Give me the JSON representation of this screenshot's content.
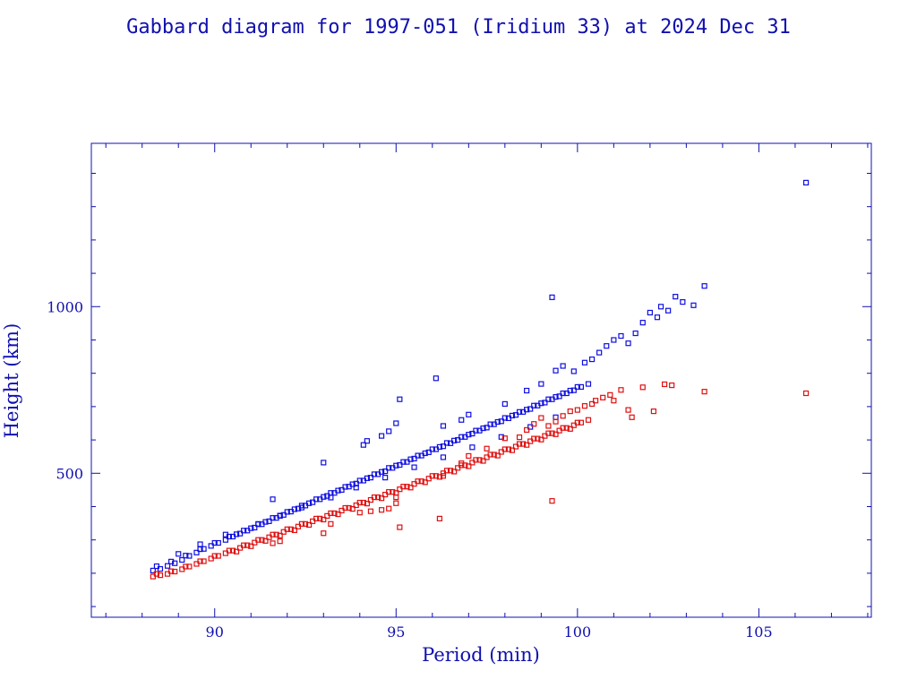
{
  "chart_data": {
    "type": "scatter",
    "title": "Gabbard diagram for 1997-051 (Iridium 33) at 2024 Dec 31",
    "xlabel": "Period (min)",
    "ylabel": "Height (km)",
    "xlim": [
      86.6,
      108.1
    ],
    "ylim": [
      68,
      1490
    ],
    "x_ticks": [
      90,
      95,
      100,
      105
    ],
    "x_tick_labels": [
      "90",
      "95",
      "100",
      "105"
    ],
    "y_ticks": [
      500,
      1000
    ],
    "y_tick_labels": [
      "500",
      "1000"
    ],
    "marker": "small open square",
    "grid": false,
    "legend": "none",
    "series": [
      {
        "role": "apogee",
        "color": "#1010e0",
        "points": [
          [
            88.3,
            208
          ],
          [
            88.5,
            213
          ],
          [
            88.7,
            222
          ],
          [
            88.9,
            230
          ],
          [
            89.1,
            240
          ],
          [
            89.3,
            252
          ],
          [
            89.5,
            262
          ],
          [
            89.7,
            273
          ],
          [
            89.9,
            282
          ],
          [
            90.1,
            291
          ],
          [
            90.3,
            300
          ],
          [
            90.5,
            310
          ],
          [
            90.7,
            319
          ],
          [
            90.9,
            328
          ],
          [
            91.1,
            337
          ],
          [
            91.3,
            347
          ],
          [
            91.5,
            356
          ],
          [
            91.7,
            366
          ],
          [
            91.9,
            375
          ],
          [
            92.1,
            385
          ],
          [
            92.3,
            394
          ],
          [
            92.5,
            403
          ],
          [
            92.7,
            413
          ],
          [
            92.9,
            422
          ],
          [
            93.1,
            432
          ],
          [
            93.3,
            441
          ],
          [
            93.5,
            450
          ],
          [
            93.7,
            460
          ],
          [
            93.9,
            469
          ],
          [
            94.1,
            478
          ],
          [
            94.3,
            487
          ],
          [
            94.5,
            497
          ],
          [
            94.7,
            506
          ],
          [
            94.9,
            516
          ],
          [
            95.1,
            525
          ],
          [
            95.3,
            534
          ],
          [
            95.5,
            544
          ],
          [
            95.7,
            553
          ],
          [
            95.9,
            563
          ],
          [
            96.1,
            572
          ],
          [
            96.3,
            581
          ],
          [
            96.5,
            590
          ],
          [
            96.7,
            600
          ],
          [
            96.9,
            609
          ],
          [
            97.1,
            619
          ],
          [
            97.3,
            628
          ],
          [
            97.5,
            637
          ],
          [
            97.7,
            647
          ],
          [
            97.9,
            656
          ],
          [
            98.1,
            665
          ],
          [
            98.3,
            675
          ],
          [
            98.5,
            684
          ],
          [
            98.7,
            693
          ],
          [
            98.9,
            703
          ],
          [
            99.1,
            712
          ],
          [
            99.3,
            722
          ],
          [
            99.5,
            731
          ],
          [
            99.7,
            740
          ],
          [
            99.9,
            749
          ],
          [
            100.1,
            759
          ],
          [
            100.3,
            768
          ],
          [
            88.4,
            221
          ],
          [
            88.8,
            235
          ],
          [
            89.2,
            253
          ],
          [
            89.6,
            272
          ],
          [
            90.0,
            291
          ],
          [
            90.4,
            310
          ],
          [
            90.8,
            328
          ],
          [
            91.2,
            347
          ],
          [
            91.6,
            366
          ],
          [
            92.0,
            384
          ],
          [
            92.4,
            403
          ],
          [
            92.8,
            422
          ],
          [
            93.2,
            441
          ],
          [
            93.6,
            459
          ],
          [
            94.0,
            478
          ],
          [
            94.4,
            497
          ],
          [
            94.8,
            516
          ],
          [
            95.2,
            534
          ],
          [
            95.6,
            553
          ],
          [
            96.0,
            572
          ],
          [
            96.4,
            591
          ],
          [
            96.8,
            609
          ],
          [
            97.2,
            628
          ],
          [
            97.6,
            647
          ],
          [
            98.0,
            666
          ],
          [
            98.4,
            684
          ],
          [
            98.8,
            703
          ],
          [
            99.2,
            722
          ],
          [
            99.6,
            740
          ],
          [
            100.0,
            759
          ],
          [
            90.6,
            317
          ],
          [
            91.0,
            335
          ],
          [
            91.4,
            354
          ],
          [
            91.8,
            373
          ],
          [
            92.2,
            392
          ],
          [
            92.6,
            410
          ],
          [
            93.0,
            429
          ],
          [
            93.4,
            448
          ],
          [
            93.8,
            467
          ],
          [
            94.2,
            485
          ],
          [
            94.6,
            504
          ],
          [
            95.0,
            523
          ],
          [
            95.4,
            542
          ],
          [
            95.8,
            560
          ],
          [
            96.2,
            579
          ],
          [
            96.6,
            598
          ],
          [
            97.0,
            616
          ],
          [
            97.4,
            635
          ],
          [
            97.8,
            654
          ],
          [
            98.2,
            673
          ],
          [
            98.6,
            691
          ],
          [
            99.0,
            710
          ],
          [
            99.4,
            729
          ],
          [
            99.8,
            748
          ],
          [
            89.0,
            258
          ],
          [
            89.6,
            287
          ],
          [
            90.3,
            316
          ],
          [
            91.2,
            348
          ],
          [
            91.8,
            372
          ],
          [
            92.4,
            397
          ],
          [
            93.2,
            427
          ],
          [
            93.9,
            457
          ],
          [
            94.7,
            487
          ],
          [
            95.5,
            518
          ],
          [
            96.3,
            548
          ],
          [
            97.1,
            578
          ],
          [
            97.9,
            609
          ],
          [
            98.7,
            639
          ],
          [
            99.4,
            668
          ],
          [
            91.6,
            422
          ],
          [
            93.0,
            532
          ],
          [
            94.1,
            585
          ],
          [
            94.2,
            597
          ],
          [
            94.6,
            612
          ],
          [
            94.8,
            626
          ],
          [
            95.0,
            650
          ],
          [
            95.1,
            722
          ],
          [
            96.1,
            785
          ],
          [
            96.3,
            642
          ],
          [
            96.8,
            660
          ],
          [
            97.0,
            676
          ],
          [
            98.0,
            708
          ],
          [
            98.6,
            748
          ],
          [
            99.0,
            768
          ],
          [
            99.3,
            1028
          ],
          [
            99.4,
            808
          ],
          [
            99.6,
            822
          ],
          [
            99.9,
            806
          ],
          [
            100.2,
            832
          ],
          [
            100.4,
            842
          ],
          [
            100.6,
            862
          ],
          [
            100.8,
            882
          ],
          [
            101.0,
            900
          ],
          [
            101.2,
            912
          ],
          [
            101.4,
            890
          ],
          [
            101.6,
            920
          ],
          [
            101.8,
            952
          ],
          [
            102.0,
            982
          ],
          [
            102.2,
            968
          ],
          [
            102.3,
            1000
          ],
          [
            102.5,
            988
          ],
          [
            102.7,
            1030
          ],
          [
            102.9,
            1014
          ],
          [
            103.2,
            1004
          ],
          [
            103.5,
            1062
          ],
          [
            106.3,
            1372
          ]
        ]
      },
      {
        "role": "perigee",
        "color": "#e01010",
        "points": [
          [
            88.3,
            190
          ],
          [
            88.5,
            194
          ],
          [
            88.7,
            198
          ],
          [
            88.9,
            205
          ],
          [
            89.1,
            212
          ],
          [
            89.3,
            220
          ],
          [
            89.5,
            228
          ],
          [
            89.7,
            236
          ],
          [
            89.9,
            244
          ],
          [
            90.1,
            252
          ],
          [
            90.3,
            260
          ],
          [
            90.5,
            268
          ],
          [
            90.7,
            276
          ],
          [
            90.9,
            284
          ],
          [
            91.1,
            292
          ],
          [
            91.3,
            300
          ],
          [
            91.5,
            308
          ],
          [
            91.7,
            316
          ],
          [
            91.9,
            324
          ],
          [
            92.1,
            332
          ],
          [
            92.3,
            340
          ],
          [
            92.5,
            348
          ],
          [
            92.7,
            356
          ],
          [
            92.9,
            364
          ],
          [
            93.1,
            372
          ],
          [
            93.3,
            380
          ],
          [
            93.5,
            388
          ],
          [
            93.7,
            396
          ],
          [
            93.9,
            404
          ],
          [
            94.1,
            412
          ],
          [
            94.3,
            420
          ],
          [
            94.5,
            428
          ],
          [
            94.7,
            436
          ],
          [
            94.9,
            444
          ],
          [
            95.1,
            452
          ],
          [
            95.3,
            460
          ],
          [
            95.5,
            468
          ],
          [
            95.7,
            476
          ],
          [
            95.9,
            484
          ],
          [
            96.1,
            492
          ],
          [
            96.3,
            500
          ],
          [
            96.5,
            508
          ],
          [
            96.7,
            516
          ],
          [
            96.9,
            524
          ],
          [
            97.1,
            532
          ],
          [
            97.3,
            540
          ],
          [
            97.5,
            548
          ],
          [
            97.7,
            556
          ],
          [
            97.9,
            564
          ],
          [
            98.1,
            572
          ],
          [
            98.3,
            580
          ],
          [
            98.5,
            588
          ],
          [
            98.7,
            596
          ],
          [
            98.9,
            604
          ],
          [
            99.1,
            612
          ],
          [
            99.3,
            620
          ],
          [
            99.5,
            628
          ],
          [
            99.7,
            636
          ],
          [
            99.9,
            644
          ],
          [
            100.1,
            652
          ],
          [
            100.3,
            660
          ],
          [
            88.4,
            198
          ],
          [
            88.8,
            206
          ],
          [
            89.2,
            220
          ],
          [
            89.6,
            236
          ],
          [
            90.0,
            252
          ],
          [
            90.4,
            268
          ],
          [
            90.8,
            284
          ],
          [
            91.2,
            300
          ],
          [
            91.6,
            316
          ],
          [
            92.0,
            332
          ],
          [
            92.4,
            348
          ],
          [
            92.8,
            364
          ],
          [
            93.2,
            380
          ],
          [
            93.6,
            396
          ],
          [
            94.0,
            412
          ],
          [
            94.4,
            428
          ],
          [
            94.8,
            444
          ],
          [
            95.2,
            460
          ],
          [
            95.6,
            476
          ],
          [
            96.0,
            492
          ],
          [
            96.4,
            508
          ],
          [
            96.8,
            524
          ],
          [
            97.2,
            540
          ],
          [
            97.6,
            556
          ],
          [
            98.0,
            572
          ],
          [
            98.4,
            588
          ],
          [
            98.8,
            604
          ],
          [
            99.2,
            620
          ],
          [
            99.6,
            636
          ],
          [
            100.0,
            652
          ],
          [
            90.6,
            265
          ],
          [
            91.0,
            281
          ],
          [
            91.4,
            297
          ],
          [
            91.8,
            313
          ],
          [
            92.2,
            329
          ],
          [
            92.6,
            345
          ],
          [
            93.0,
            361
          ],
          [
            93.4,
            377
          ],
          [
            93.8,
            393
          ],
          [
            94.2,
            409
          ],
          [
            94.6,
            425
          ],
          [
            95.0,
            441
          ],
          [
            95.4,
            457
          ],
          [
            95.8,
            473
          ],
          [
            96.2,
            489
          ],
          [
            96.6,
            505
          ],
          [
            97.0,
            521
          ],
          [
            97.4,
            537
          ],
          [
            97.8,
            553
          ],
          [
            98.2,
            569
          ],
          [
            98.6,
            585
          ],
          [
            99.0,
            601
          ],
          [
            99.4,
            617
          ],
          [
            99.8,
            633
          ],
          [
            91.6,
            290
          ],
          [
            91.8,
            296
          ],
          [
            93.0,
            320
          ],
          [
            93.2,
            348
          ],
          [
            94.0,
            382
          ],
          [
            94.3,
            386
          ],
          [
            94.6,
            390
          ],
          [
            94.8,
            394
          ],
          [
            95.0,
            410
          ],
          [
            95.0,
            428
          ],
          [
            95.1,
            338
          ],
          [
            96.2,
            364
          ],
          [
            96.3,
            492
          ],
          [
            96.8,
            530
          ],
          [
            97.0,
            552
          ],
          [
            97.5,
            574
          ],
          [
            98.0,
            605
          ],
          [
            98.4,
            608
          ],
          [
            98.6,
            630
          ],
          [
            98.8,
            648
          ],
          [
            99.0,
            666
          ],
          [
            99.2,
            642
          ],
          [
            99.3,
            417
          ],
          [
            99.4,
            655
          ],
          [
            99.6,
            672
          ],
          [
            99.8,
            686
          ],
          [
            100.0,
            690
          ],
          [
            100.2,
            702
          ],
          [
            100.4,
            708
          ],
          [
            100.5,
            718
          ],
          [
            100.7,
            727
          ],
          [
            100.9,
            735
          ],
          [
            101.0,
            718
          ],
          [
            101.2,
            750
          ],
          [
            101.4,
            690
          ],
          [
            101.5,
            668
          ],
          [
            101.8,
            758
          ],
          [
            102.1,
            686
          ],
          [
            102.4,
            767
          ],
          [
            102.6,
            764
          ],
          [
            103.5,
            745
          ],
          [
            106.3,
            740
          ]
        ]
      }
    ]
  }
}
